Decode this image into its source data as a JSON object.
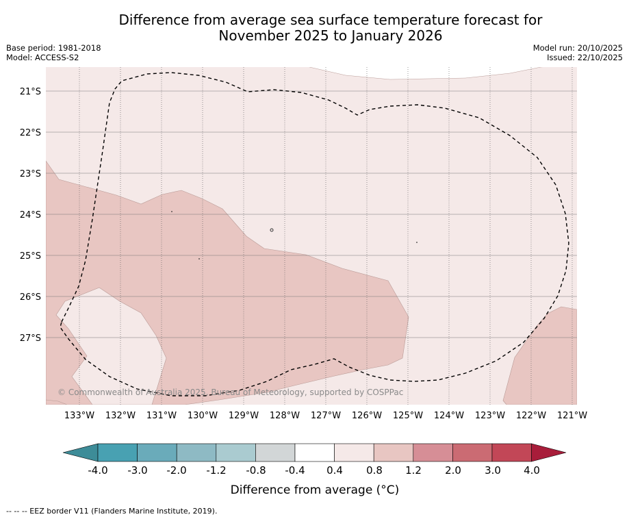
{
  "title": {
    "line1": "Difference from average sea surface temperature forecast for",
    "line2": "November 2025 to January 2026"
  },
  "meta_left": {
    "base_period": "Base period: 1981-2018",
    "model": "Model: ACCESS-S2"
  },
  "meta_right": {
    "model_run": "Model run: 20/10/2025",
    "issued": "Issued: 22/10/2025"
  },
  "map": {
    "lat_labels": [
      "21°S",
      "22°S",
      "23°S",
      "24°S",
      "25°S",
      "26°S",
      "27°S"
    ],
    "lon_labels": [
      "133°W",
      "132°W",
      "131°W",
      "130°W",
      "129°W",
      "128°W",
      "127°W",
      "126°W",
      "125°W",
      "124°W",
      "123°W",
      "122°W",
      "121°W"
    ],
    "copyright": "© Commonwealth of Australia 2025, Bureau of Meteorology, supported by COSPPac",
    "colors": {
      "cat_04_08": "#f5e9e8",
      "cat_08_12": "#e8c6c2",
      "contour": "#b89a96",
      "eez_border": "#000000"
    }
  },
  "colorbar": {
    "tick_labels": [
      "-4.0",
      "-3.0",
      "-2.0",
      "-1.2",
      "-0.8",
      "-0.4",
      "0.4",
      "0.8",
      "1.2",
      "2.0",
      "3.0",
      "4.0"
    ],
    "colors": [
      "#3d8c98",
      "#48a1b2",
      "#6aabba",
      "#8ebac4",
      "#aacbd0",
      "#d2d6d7",
      "#ffffff",
      "#f5e9e8",
      "#e8c6c2",
      "#d68e96",
      "#cb6b73",
      "#c24757",
      "#a81d3a"
    ],
    "label": "Difference from average (°C)"
  },
  "footer": "--  --  -- EEZ border V11 (Flanders Marine Institute, 2019)."
}
